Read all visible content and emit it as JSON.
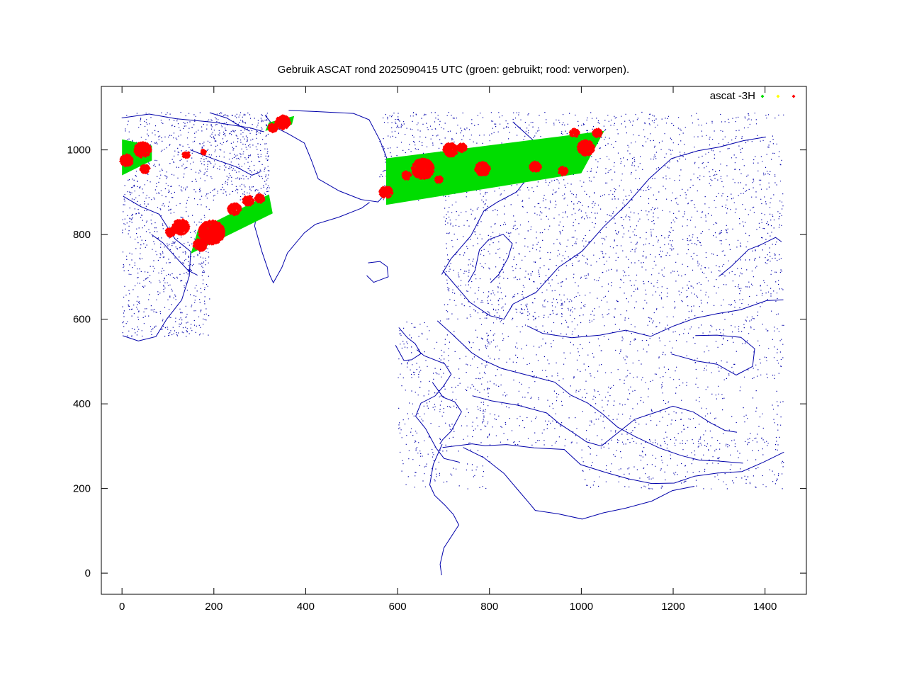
{
  "chart_data": {
    "type": "scatter",
    "title": "Gebruik ASCAT rond 2025090415 UTC (groen: gebruikt; rood: verworpen).",
    "xlabel": "",
    "ylabel": "",
    "xlim": [
      -45,
      1490
    ],
    "ylim": [
      -50,
      1150
    ],
    "x_ticks": [
      0,
      200,
      400,
      600,
      800,
      1000,
      1200,
      1400
    ],
    "y_ticks": [
      0,
      200,
      400,
      600,
      800,
      1000
    ],
    "grid": false,
    "legend": {
      "placement": "top-right",
      "label": "ascat -3H",
      "marker_colors": [
        "#00dd00",
        "#ffff00",
        "#ff0000"
      ]
    },
    "colors": {
      "used": "#00dd00",
      "rejected": "#ff0000",
      "coast": "#0000aa"
    },
    "series": [
      {
        "status": "used",
        "color": "#00dd00",
        "swaths": [
          {
            "corners": [
              [
                0,
                940
              ],
              [
                0,
                1025
              ],
              [
                65,
                1010
              ],
              [
                65,
                975
              ]
            ]
          },
          {
            "corners": [
              [
                150,
                755
              ],
              [
                165,
                810
              ],
              [
                320,
                895
              ],
              [
                328,
                850
              ]
            ]
          },
          {
            "corners": [
              [
                312,
                1045
              ],
              [
                320,
                1065
              ],
              [
                375,
                1080
              ],
              [
                370,
                1060
              ]
            ]
          },
          {
            "corners": [
              [
                575,
                870
              ],
              [
                575,
                980
              ],
              [
                1050,
                1045
              ],
              [
                1000,
                945
              ]
            ]
          }
        ]
      },
      {
        "status": "rejected",
        "color": "#ff0000",
        "clusters": [
          {
            "center": [
              45,
              1000
            ],
            "radius": 18
          },
          {
            "center": [
              10,
              975
            ],
            "radius": 14
          },
          {
            "center": [
              50,
              955
            ],
            "radius": 10
          },
          {
            "center": [
              128,
              818
            ],
            "radius": 18
          },
          {
            "center": [
              105,
              805
            ],
            "radius": 10
          },
          {
            "center": [
              195,
              805
            ],
            "radius": 28
          },
          {
            "center": [
              170,
              775
            ],
            "radius": 14
          },
          {
            "center": [
              245,
              860
            ],
            "radius": 14
          },
          {
            "center": [
              275,
              880
            ],
            "radius": 12
          },
          {
            "center": [
              300,
              885
            ],
            "radius": 10
          },
          {
            "center": [
              350,
              1065
            ],
            "radius": 16
          },
          {
            "center": [
              328,
              1052
            ],
            "radius": 10
          },
          {
            "center": [
              140,
              988
            ],
            "radius": 8
          },
          {
            "center": [
              178,
              995
            ],
            "radius": 6
          },
          {
            "center": [
              575,
              900
            ],
            "radius": 14
          },
          {
            "center": [
              655,
              955
            ],
            "radius": 24
          },
          {
            "center": [
              620,
              940
            ],
            "radius": 10
          },
          {
            "center": [
              715,
              1000
            ],
            "radius": 16
          },
          {
            "center": [
              785,
              955
            ],
            "radius": 16
          },
          {
            "center": [
              740,
              1005
            ],
            "radius": 10
          },
          {
            "center": [
              900,
              960
            ],
            "radius": 12
          },
          {
            "center": [
              960,
              950
            ],
            "radius": 10
          },
          {
            "center": [
              1010,
              1005
            ],
            "radius": 18
          },
          {
            "center": [
              1035,
              1040
            ],
            "radius": 10
          },
          {
            "center": [
              690,
              930
            ],
            "radius": 8
          },
          {
            "center": [
              985,
              1040
            ],
            "radius": 10
          }
        ]
      }
    ]
  }
}
